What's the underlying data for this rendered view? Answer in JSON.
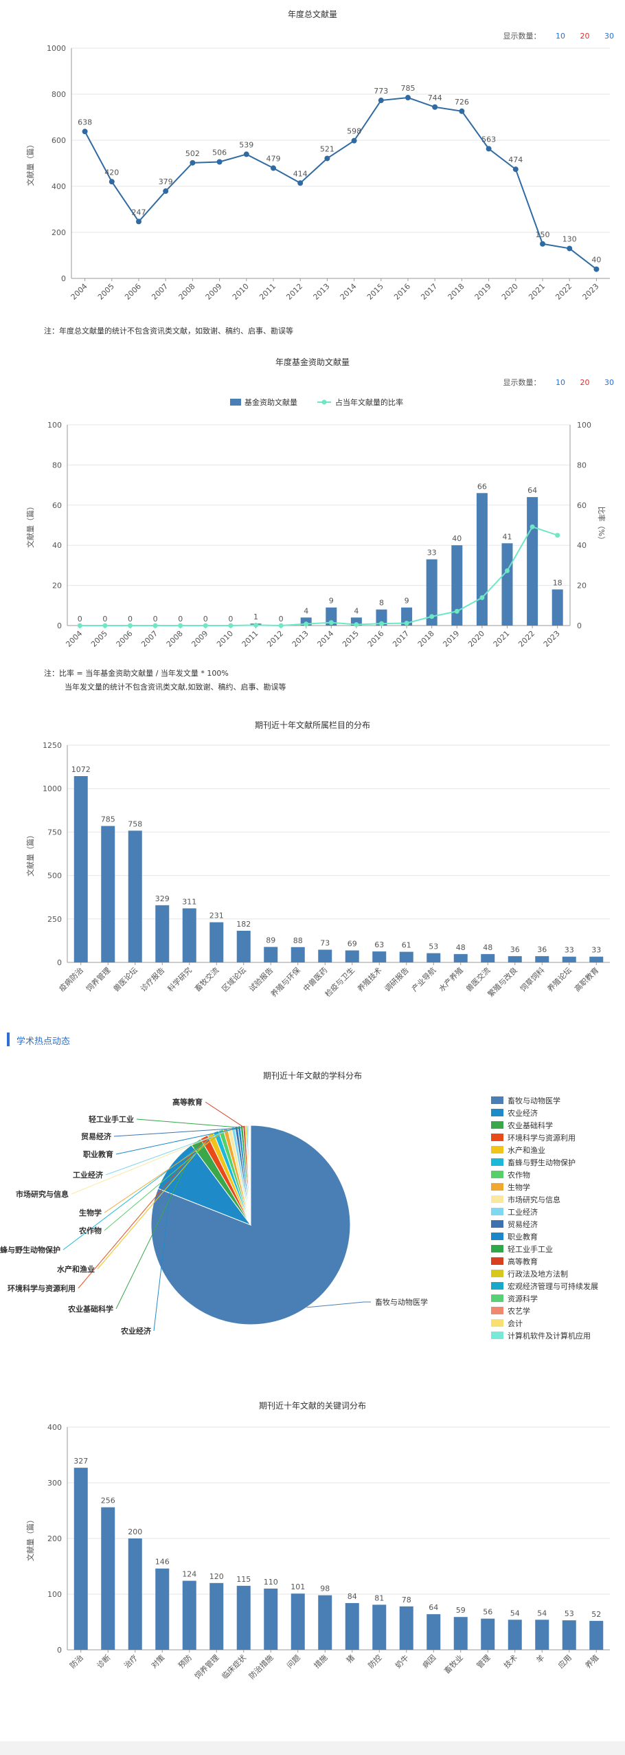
{
  "show_count": {
    "label": "显示数量：",
    "options": [
      "10",
      "20",
      "30"
    ]
  },
  "annual": {
    "title": "年度总文献量",
    "ylabel": "文献量（篇）",
    "note": "注：年度总文献量的统计不包含资讯类文献，如致谢、稿约、启事、勘误等"
  },
  "funded": {
    "title": "年度基金资助文献量",
    "ylabel": "文献量（篇）",
    "y2label": "比率（%）",
    "legend_bar": "基金资助文献量",
    "legend_line": "占当年文献量的比率",
    "note1": "注：比率 = 当年基金资助文献量 / 当年发文量 * 100%",
    "note2": "当年发文量的统计不包含资讯类文献,如致谢、稿约、启事、勘误等"
  },
  "columns": {
    "title": "期刊近十年文献所属栏目的分布",
    "ylabel": "文献量（篇）"
  },
  "section_title": "学术热点动态",
  "subjects": {
    "title": "期刊近十年文献的学科分布"
  },
  "keywords": {
    "title": "期刊近十年文献的关键词分布",
    "ylabel": "文献量（篇）"
  },
  "colors": {
    "primary": "#4a7fb5",
    "line": "#2f6aa3",
    "ratio": "#6ee7c5",
    "link": "#2a6fd6"
  },
  "chart_data": [
    {
      "type": "line",
      "title": "年度总文献量",
      "ylabel": "文献量（篇）",
      "x": [
        "2004",
        "2005",
        "2006",
        "2007",
        "2008",
        "2009",
        "2010",
        "2011",
        "2012",
        "2013",
        "2014",
        "2015",
        "2016",
        "2017",
        "2018",
        "2019",
        "2020",
        "2021",
        "2022",
        "2023"
      ],
      "values": [
        638,
        420,
        247,
        379,
        502,
        506,
        539,
        479,
        414,
        521,
        598,
        773,
        785,
        744,
        726,
        563,
        474,
        150,
        130,
        40
      ],
      "ylim": [
        0,
        1000
      ],
      "yticks": [
        0,
        200,
        400,
        600,
        800,
        1000
      ]
    },
    {
      "type": "bar",
      "title": "年度基金资助文献量",
      "x": [
        "2004",
        "2005",
        "2006",
        "2007",
        "2008",
        "2009",
        "2010",
        "2011",
        "2012",
        "2013",
        "2014",
        "2015",
        "2016",
        "2017",
        "2018",
        "2019",
        "2020",
        "2021",
        "2022",
        "2023"
      ],
      "series": [
        {
          "name": "基金资助文献量",
          "values": [
            0,
            0,
            0,
            0,
            0,
            0,
            0,
            1,
            0,
            4,
            9,
            4,
            8,
            9,
            33,
            40,
            66,
            41,
            64,
            18
          ]
        },
        {
          "name": "占当年文献量的比率",
          "values": [
            0,
            0,
            0,
            0,
            0,
            0,
            0,
            0.2,
            0,
            0.8,
            1.5,
            0.5,
            1.0,
            1.2,
            4.5,
            7.1,
            13.9,
            27.3,
            49.2,
            45.0
          ]
        }
      ],
      "ylim": [
        0,
        100
      ],
      "yticks": [
        0,
        20,
        40,
        60,
        80,
        100
      ],
      "y2lim": [
        0,
        100
      ]
    },
    {
      "type": "bar",
      "title": "期刊近十年文献所属栏目的分布",
      "categories": [
        "疫病防治",
        "饲养管理",
        "兽医论坛",
        "诊疗报告",
        "科学研究",
        "畜牧交流",
        "区域论坛",
        "试验报告",
        "养殖与环保",
        "中兽医药",
        "检疫与卫生",
        "养殖技术",
        "调研报告",
        "产业导航",
        "水产养殖",
        "兽医交流",
        "繁殖与改良",
        "饲草饲料",
        "养殖论坛",
        "高职教育"
      ],
      "values": [
        1072,
        785,
        758,
        329,
        311,
        231,
        182,
        89,
        88,
        73,
        69,
        63,
        61,
        53,
        48,
        48,
        36,
        36,
        33,
        33
      ],
      "ylim": [
        0,
        1250
      ],
      "yticks": [
        0,
        250,
        500,
        750,
        1000,
        1250
      ]
    },
    {
      "type": "pie",
      "title": "期刊近十年文献的学科分布",
      "labels": [
        "畜牧与动物医学",
        "农业经济",
        "农业基础科学",
        "环境科学与资源利用",
        "水产和渔业",
        "畜蜂与野生动物保护",
        "农作物",
        "生物学",
        "市场研究与信息",
        "工业经济",
        "贸易经济",
        "职业教育",
        "轻工业手工业",
        "高等教育",
        "行政法及地方法制",
        "宏观经济管理与可持续发展",
        "资源科学",
        "农艺学",
        "会计",
        "计算机软件及计算机应用"
      ],
      "values": [
        5110,
        560,
        110,
        80,
        65,
        55,
        50,
        45,
        40,
        35,
        30,
        28,
        25,
        22,
        15,
        12,
        10,
        8,
        6,
        5
      ],
      "colors": [
        "#4a7fb5",
        "#1f8ac8",
        "#3aa84a",
        "#e84a1a",
        "#f2c318",
        "#1cb8d8",
        "#58d06a",
        "#f0a830",
        "#f9e9a0",
        "#7dd8f0",
        "#3d72b0",
        "#1a88c8",
        "#2fa84a",
        "#d84020",
        "#d8c818",
        "#18a8c8",
        "#58d078",
        "#f08870",
        "#f8e070",
        "#78e8d8"
      ]
    },
    {
      "type": "bar",
      "title": "期刊近十年文献的关键词分布",
      "categories": [
        "防治",
        "诊断",
        "治疗",
        "对策",
        "预防",
        "饲养管理",
        "临床症状",
        "防治措施",
        "问题",
        "措施",
        "猪",
        "防控",
        "奶牛",
        "病因",
        "畜牧业",
        "管理",
        "技术",
        "羊",
        "应用",
        "养殖"
      ],
      "values": [
        327,
        256,
        200,
        146,
        124,
        120,
        115,
        110,
        101,
        98,
        84,
        81,
        78,
        64,
        59,
        56,
        54,
        54,
        53,
        52
      ],
      "ylim": [
        0,
        400
      ],
      "yticks": [
        0,
        100,
        200,
        300,
        400
      ]
    }
  ]
}
